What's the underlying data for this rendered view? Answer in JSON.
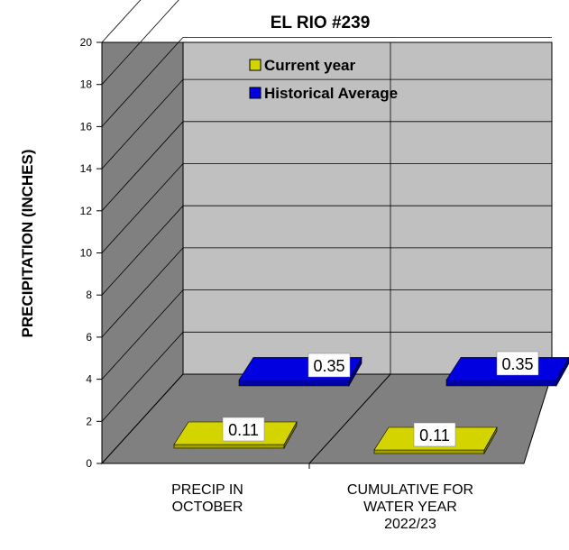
{
  "chart_data": {
    "type": "bar",
    "style": "3d-clustered-column",
    "title": "EL RIO #239",
    "ylabel": "PRECIPITATION (INCHES)",
    "xlabel": "",
    "ylim": [
      0,
      20
    ],
    "yticks": [
      "0",
      "2",
      "4",
      "6",
      "8",
      "10",
      "12",
      "14",
      "16",
      "18",
      "20"
    ],
    "categories": [
      [
        "PRECIP IN",
        "OCTOBER"
      ],
      [
        "CUMULATIVE FOR",
        "WATER YEAR",
        "2022/23"
      ]
    ],
    "series": [
      {
        "name": "Current year",
        "color": "#d4d400",
        "values": [
          0.11,
          0.11
        ],
        "labels": [
          "0.11",
          "0.11"
        ]
      },
      {
        "name": "Historical Average",
        "color": "#0000e0",
        "values": [
          0.35,
          0.35
        ],
        "labels": [
          "0.35",
          "0.35"
        ]
      }
    ],
    "legend_position": "top-center",
    "grid": true,
    "colors": {
      "back_wall": "#c0c0c0",
      "side_wall": "#808080",
      "floor": "#808080"
    }
  }
}
